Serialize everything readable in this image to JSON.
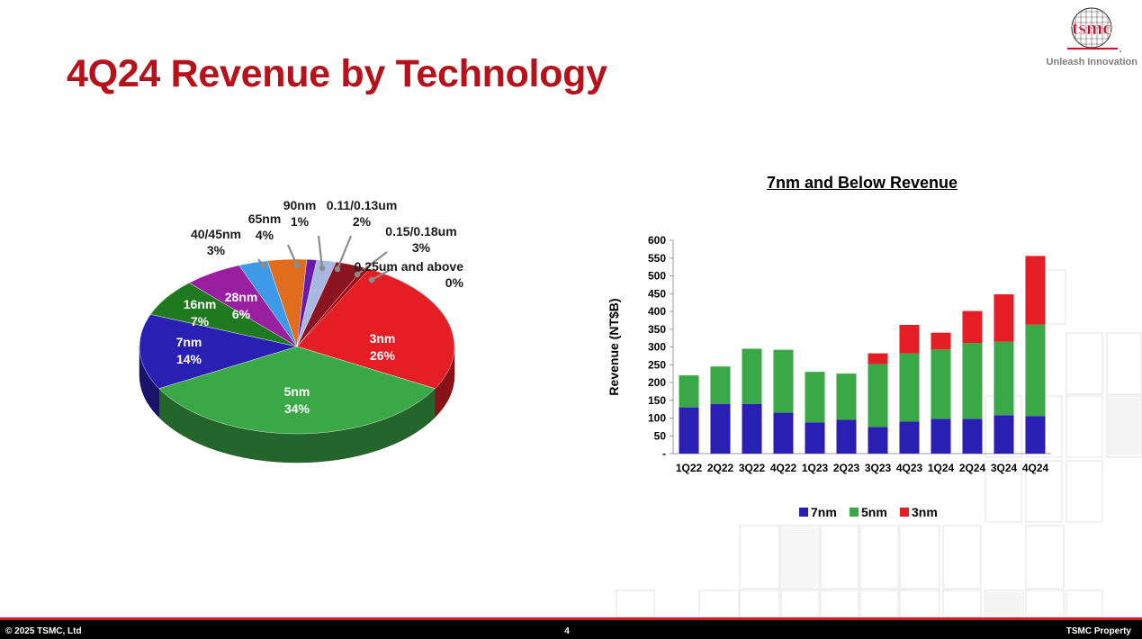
{
  "slide": {
    "title": "4Q24 Revenue by Technology",
    "brand": {
      "logo_text": "tsmc",
      "tagline": "Unleash Innovation",
      "logo_color": "#c8102e"
    },
    "footer": {
      "copyright": "© 2025 TSMC, Ltd",
      "page_number": "4",
      "property": "TSMC Property"
    }
  },
  "chart_data": [
    {
      "type": "pie",
      "title": "",
      "slices": [
        {
          "label": "3nm",
          "value": 26,
          "color": "#e41e24"
        },
        {
          "label": "5nm",
          "value": 34,
          "color": "#3aa846"
        },
        {
          "label": "7nm",
          "value": 14,
          "color": "#2a1fb3"
        },
        {
          "label": "16nm",
          "value": 7,
          "color": "#1f7a1f"
        },
        {
          "label": "28nm",
          "value": 6,
          "color": "#9a1fa0"
        },
        {
          "label": "40/45nm",
          "value": 3,
          "color": "#3c9ae8"
        },
        {
          "label": "65nm",
          "value": 4,
          "color": "#e06c1d"
        },
        {
          "label": "90nm",
          "value": 1,
          "color": "#6a1aa8"
        },
        {
          "label": "0.11/0.13um",
          "value": 2,
          "color": "#a8b8e0"
        },
        {
          "label": "0.15/0.18um",
          "value": 3,
          "color": "#8a1420"
        },
        {
          "label": "0.25um and above",
          "value": 0,
          "color": "#a30e16"
        }
      ],
      "value_suffix": "%"
    },
    {
      "type": "bar",
      "stacked": true,
      "title": "7nm and Below Revenue",
      "ylabel": "Revenue (NT$B)",
      "xlabel": "",
      "ylim": [
        0,
        600
      ],
      "yticks": [
        "-",
        "50",
        "100",
        "150",
        "200",
        "250",
        "300",
        "350",
        "400",
        "450",
        "500",
        "550",
        "600"
      ],
      "categories": [
        "1Q22",
        "2Q22",
        "3Q22",
        "4Q22",
        "1Q23",
        "2Q23",
        "3Q23",
        "4Q23",
        "1Q24",
        "2Q24",
        "3Q24",
        "4Q24"
      ],
      "series": [
        {
          "name": "7nm",
          "color": "#2a1fb3",
          "values": [
            130,
            140,
            140,
            115,
            88,
            95,
            75,
            90,
            98,
            98,
            108,
            105
          ]
        },
        {
          "name": "5nm",
          "color": "#3aa846",
          "values": [
            90,
            105,
            155,
            177,
            142,
            130,
            177,
            192,
            195,
            213,
            207,
            258
          ]
        },
        {
          "name": "3nm",
          "color": "#e41e24",
          "values": [
            0,
            0,
            0,
            0,
            0,
            0,
            30,
            80,
            47,
            90,
            133,
            193
          ]
        }
      ],
      "legend_position": "bottom"
    }
  ]
}
